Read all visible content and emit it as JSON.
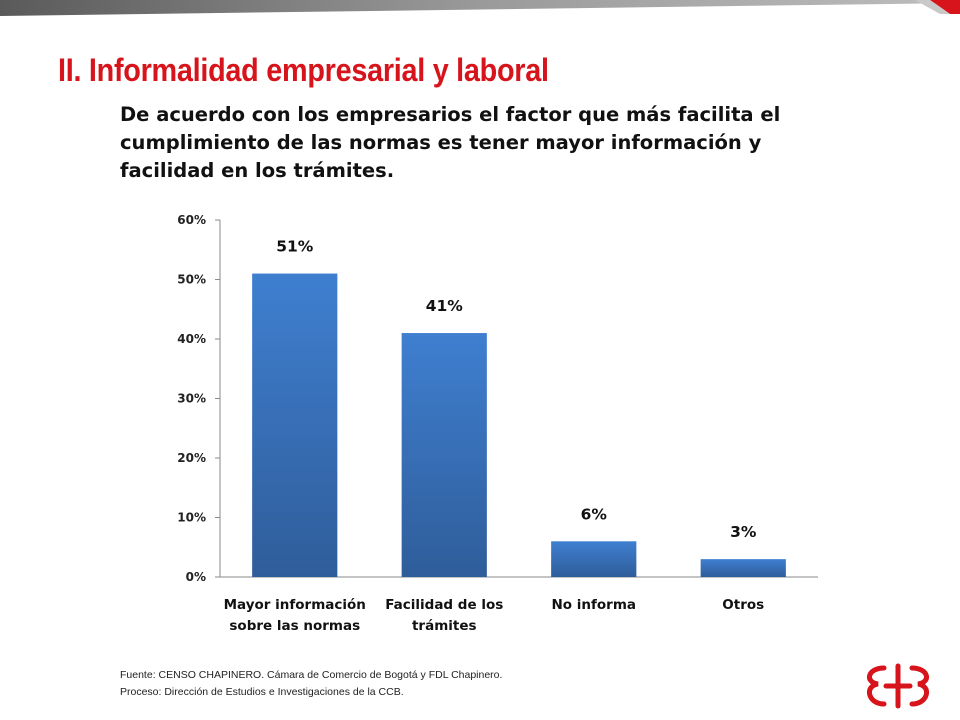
{
  "header": {
    "title": "II. Informalidad empresarial y laboral",
    "subtitle": "De acuerdo con los empresarios el factor que más facilita el cumplimiento de las normas es tener mayor información y facilidad en los trámites."
  },
  "chart_data": {
    "type": "bar",
    "categories": [
      [
        "Mayor información",
        "sobre las normas"
      ],
      [
        "Facilidad de los",
        "trámites"
      ],
      [
        "No informa"
      ],
      [
        "Otros"
      ]
    ],
    "values": [
      51,
      41,
      6,
      3
    ],
    "data_labels": [
      "51%",
      "41%",
      "6%",
      "3%"
    ],
    "y_ticks": [
      "0%",
      "10%",
      "20%",
      "30%",
      "40%",
      "50%",
      "60%"
    ],
    "ylim": [
      0,
      60
    ],
    "grid": false,
    "legend": "none",
    "bar_color": "#3a74c4"
  },
  "footer": {
    "source_line": "Fuente: CENSO CHAPINERO. Cámara de Comercio de Bogotá y FDL Chapinero.",
    "process_line": "Proceso: Dirección de Estudios e Investigaciones de la CCB."
  },
  "colors": {
    "brand_red": "#d7131b",
    "band_gray": "#8c8c8c"
  },
  "logo": {
    "icon": "ccb-logo-icon"
  }
}
